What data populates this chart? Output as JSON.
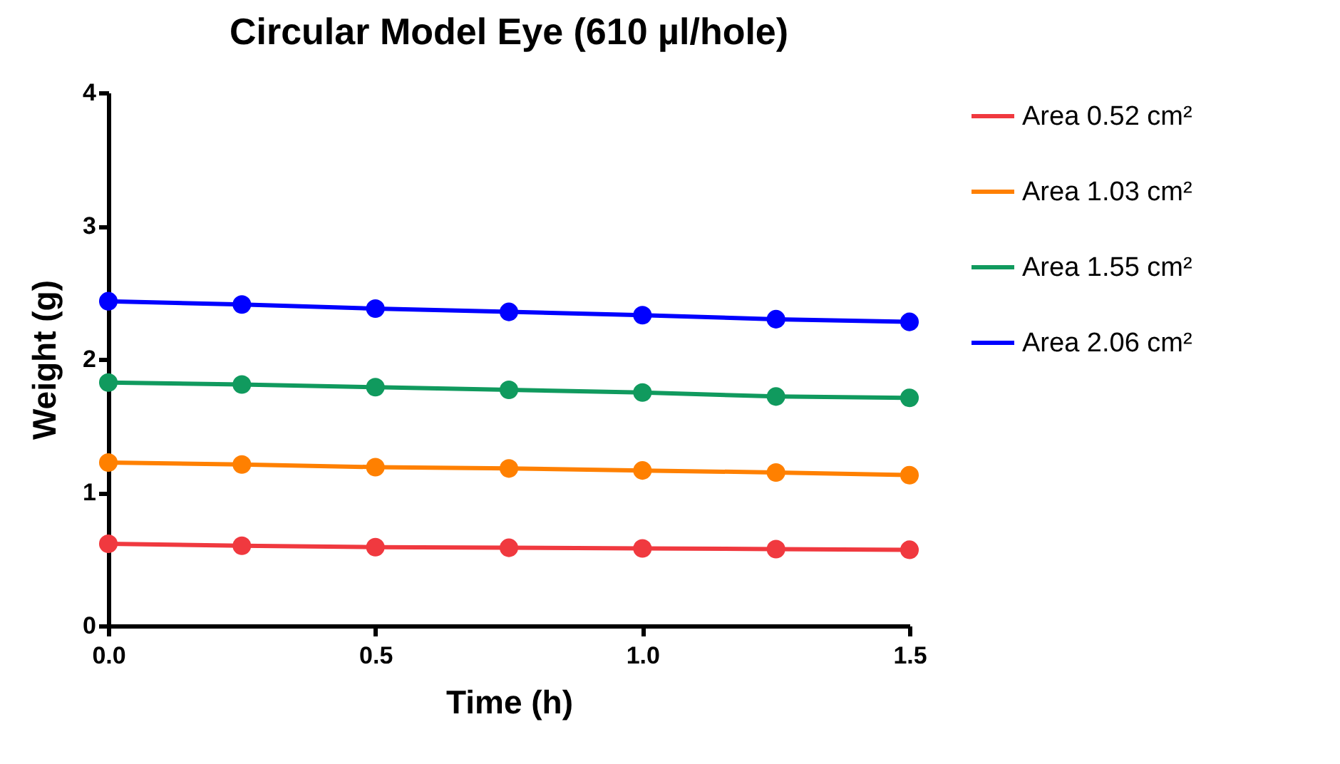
{
  "chart_data": {
    "type": "line",
    "title": "Circular Model Eye (610 µl/hole)",
    "xlabel": "Time (h)",
    "ylabel": "Weight (g)",
    "x": [
      0,
      0.25,
      0.5,
      0.75,
      1.0,
      1.25,
      1.5
    ],
    "series": [
      {
        "name": "Area 0.52 cm²",
        "color": "#f0393f",
        "values": [
          0.615,
          0.6,
          0.59,
          0.585,
          0.58,
          0.575,
          0.57
        ]
      },
      {
        "name": "Area 1.03 cm²",
        "color": "#ff8000",
        "values": [
          1.225,
          1.21,
          1.19,
          1.18,
          1.165,
          1.15,
          1.13
        ]
      },
      {
        "name": "Area 1.55 cm²",
        "color": "#109a5e",
        "values": [
          1.825,
          1.81,
          1.79,
          1.77,
          1.75,
          1.72,
          1.71
        ]
      },
      {
        "name": "Area 2.06 cm²",
        "color": "#0000ff",
        "values": [
          2.435,
          2.41,
          2.38,
          2.355,
          2.33,
          2.3,
          2.28
        ]
      }
    ],
    "xlim": [
      0,
      1.5
    ],
    "xticks": [
      {
        "value": 0,
        "label": "0.0"
      },
      0.5,
      {
        "value": 1,
        "label": "1.0"
      },
      1.5
    ],
    "ylim": [
      0,
      4
    ],
    "yticks": [
      0,
      1,
      2,
      3,
      4
    ],
    "grid": false,
    "legend": "right",
    "marker": "circle",
    "line_style": "solid"
  }
}
